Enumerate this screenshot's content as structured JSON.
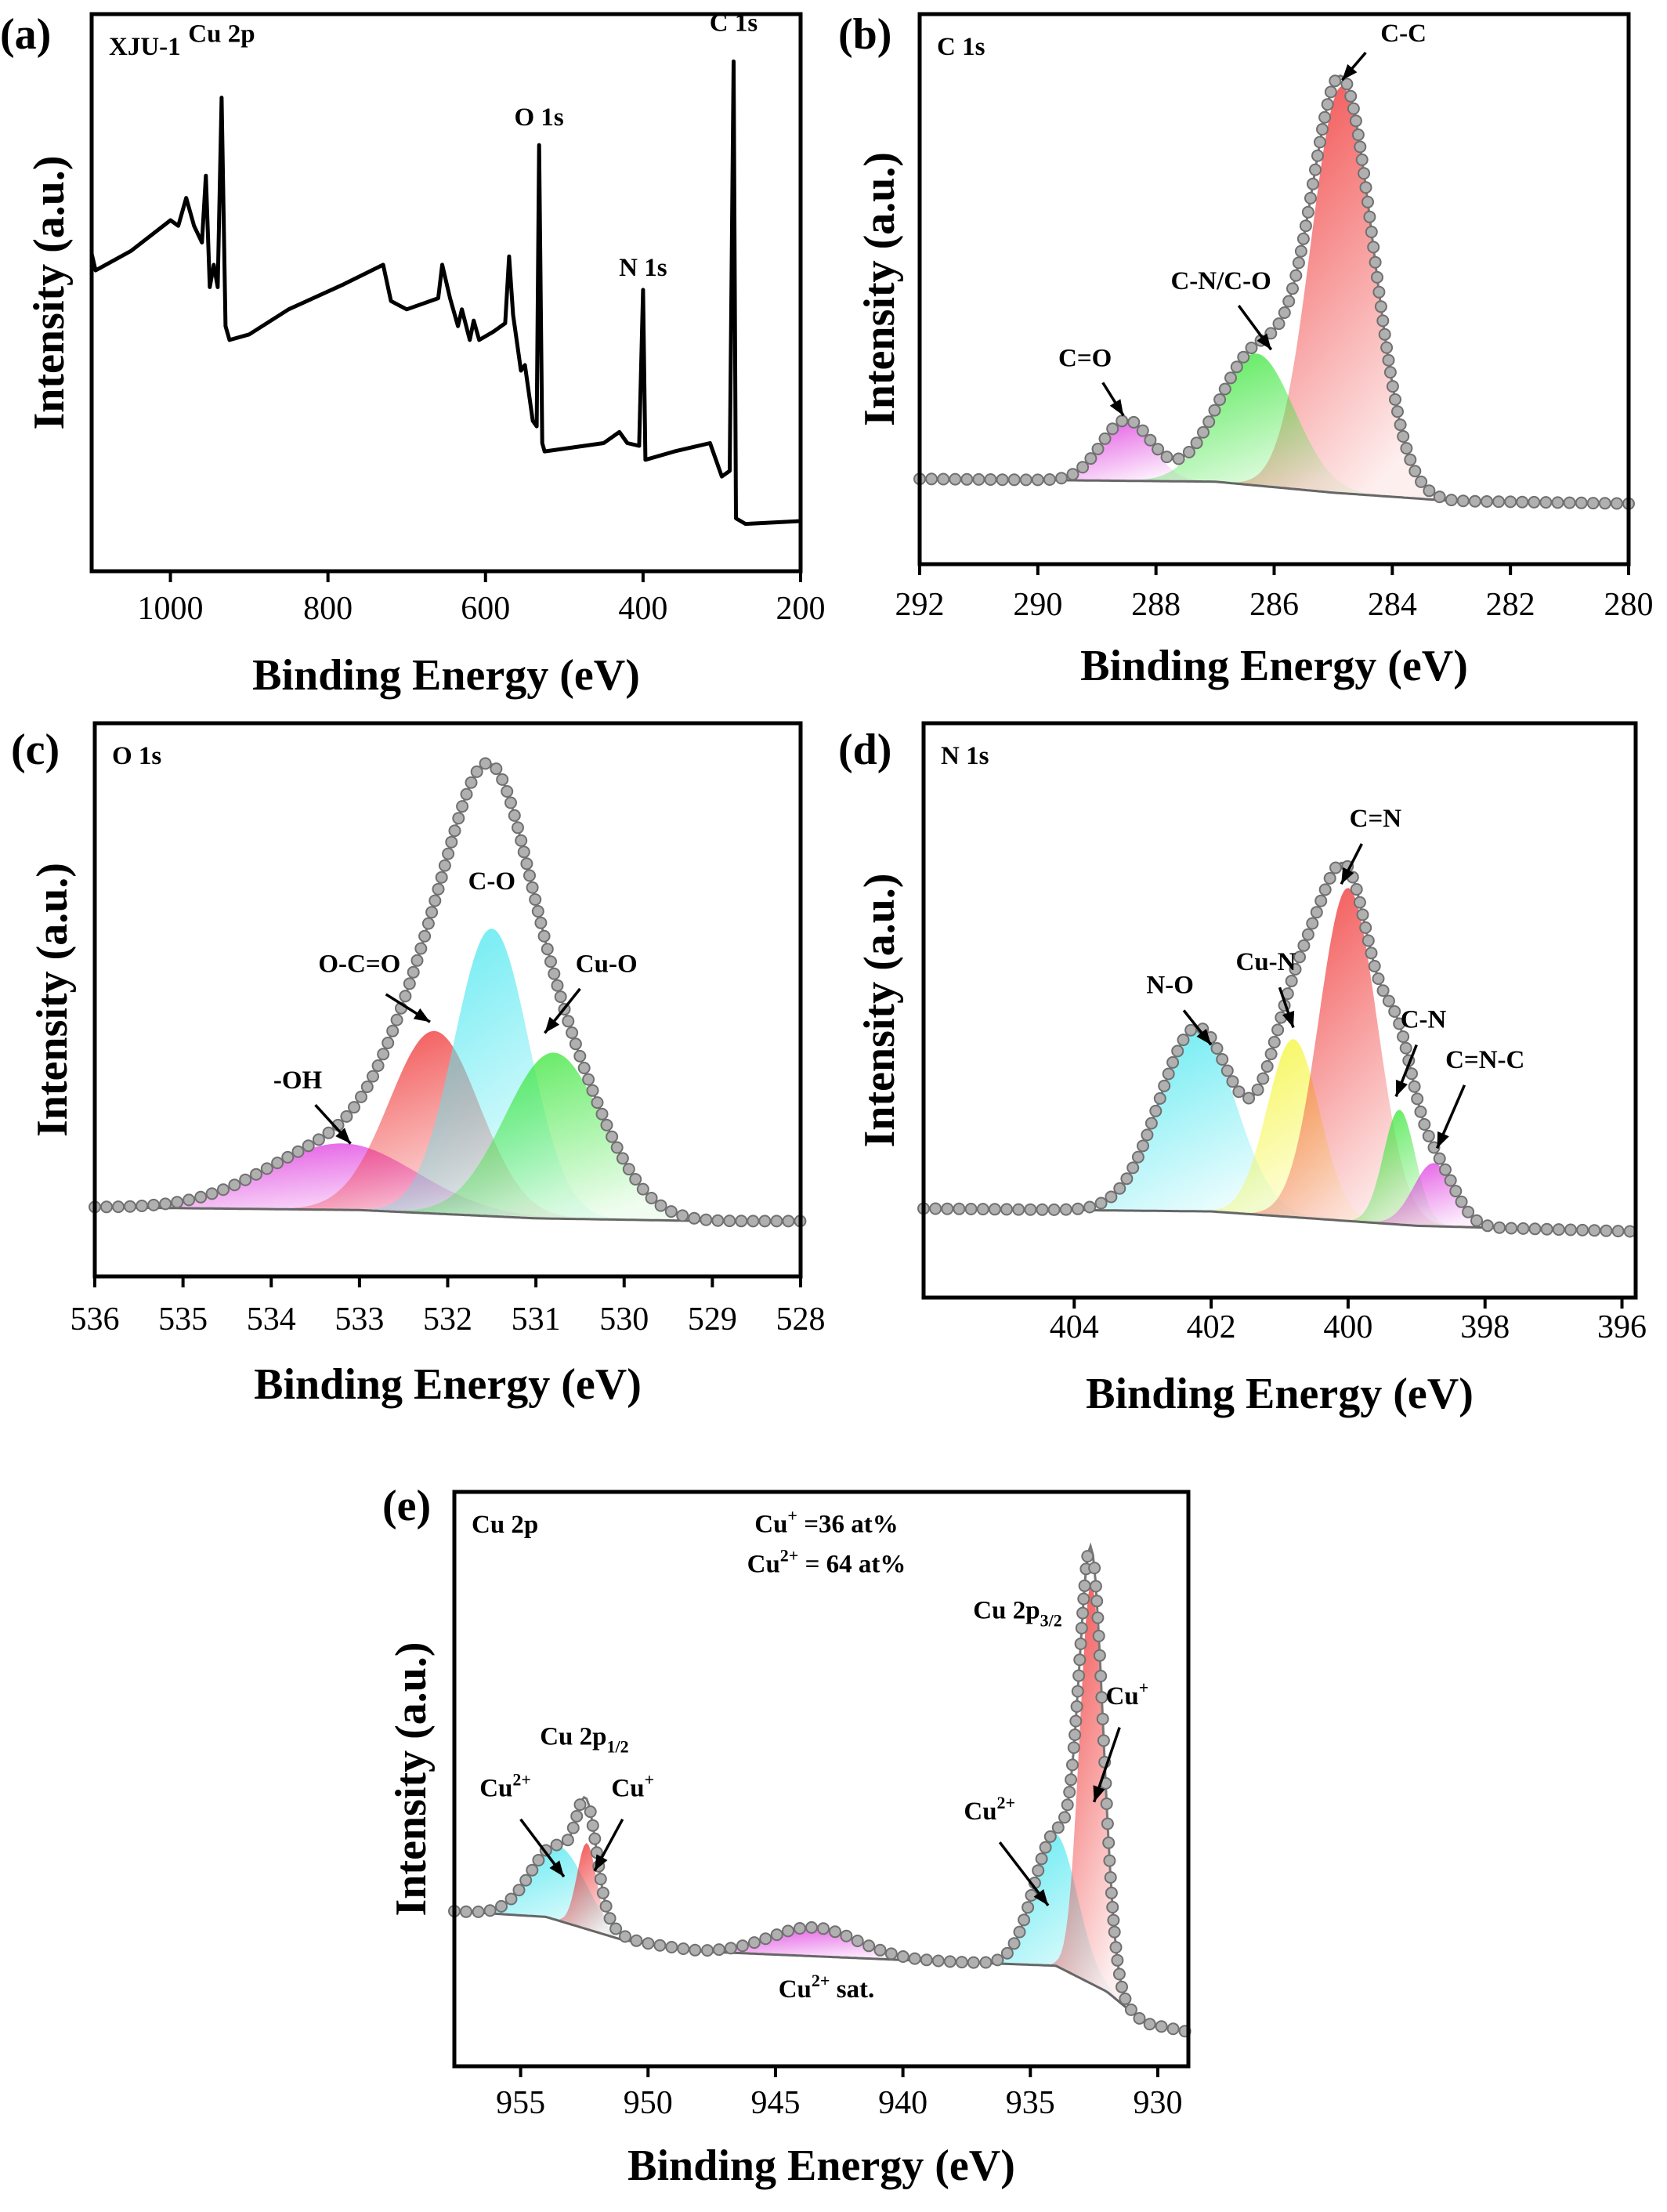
{
  "chart_data": [
    {
      "panel": "(a)",
      "type": "line",
      "corner_label": "XJU-1",
      "xlabel": "Binding Energy (eV)",
      "ylabel": "Intensity (a.u.)",
      "xlim": [
        1100,
        200
      ],
      "ylim": [
        0,
        100
      ],
      "xticks": [
        1000,
        800,
        600,
        400,
        200
      ],
      "grid": false,
      "line_color": "#000000",
      "series": [
        {
          "x": [
            1100,
            1095,
            1050,
            1000,
            990,
            980,
            970,
            960,
            955,
            950,
            945,
            940,
            935,
            930,
            925,
            900,
            850,
            780,
            730,
            720,
            700,
            660,
            655,
            645,
            635,
            630,
            620,
            615,
            608,
            590,
            575,
            570,
            565,
            555,
            550,
            540,
            535,
            532,
            528,
            525,
            450,
            430,
            420,
            405,
            400,
            397,
            360,
            315,
            300,
            290,
            285,
            282,
            270,
            200
          ],
          "y": [
            57,
            54,
            57.5,
            63,
            62,
            67,
            62,
            59,
            71,
            51,
            55,
            51,
            85,
            44,
            41.5,
            42.5,
            47,
            51.5,
            55,
            48.5,
            47,
            49,
            55,
            49,
            44,
            47,
            41.5,
            45,
            41.5,
            43,
            44.5,
            56.5,
            46,
            36,
            37,
            27,
            26,
            76.5,
            23,
            21.5,
            23,
            25,
            23,
            22.5,
            50.5,
            20,
            21.5,
            23,
            17,
            18,
            91.5,
            9.5,
            8.5,
            9
          ]
        }
      ],
      "annotations": [
        {
          "text": "Cu 2p"
        },
        {
          "text": "O 1s"
        },
        {
          "text": "N 1s"
        },
        {
          "text": "C 1s"
        }
      ]
    },
    {
      "panel": "(b)",
      "type": "area",
      "corner_label": "C 1s",
      "xlabel": "Binding Energy (eV)",
      "ylabel": "Intensity (a.u.)",
      "xlim": [
        292,
        280
      ],
      "ylim": [
        0,
        100
      ],
      "xticks": [
        292,
        290,
        288,
        286,
        284,
        282,
        280
      ],
      "grid": false,
      "background": [
        [
          292,
          15.5
        ],
        [
          287,
          15
        ],
        [
          285,
          13
        ],
        [
          283,
          11.5
        ],
        [
          280,
          11
        ]
      ],
      "peaks": [
        {
          "name": "C-C",
          "center": 284.85,
          "height": 74,
          "fwhm": 1.25,
          "color": "#f03434"
        },
        {
          "name": "C-N/C-O",
          "center": 286.3,
          "height": 24,
          "fwhm": 1.5,
          "color": "#3ce63c"
        },
        {
          "name": "C=O",
          "center": 288.5,
          "height": 11,
          "fwhm": 1.0,
          "color": "#e040e0"
        }
      ],
      "annotations": [
        {
          "text": "C-C"
        },
        {
          "text": "C-N/C-O"
        },
        {
          "text": "C=O"
        }
      ]
    },
    {
      "panel": "(c)",
      "type": "area",
      "corner_label": "O 1s",
      "xlabel": "Binding Energy (eV)",
      "ylabel": "Intensity (a.u.)",
      "xlim": [
        536,
        528
      ],
      "ylim": [
        0,
        100
      ],
      "xticks": [
        536,
        535,
        534,
        533,
        532,
        531,
        530,
        529,
        528
      ],
      "grid": false,
      "background": [
        [
          536,
          12.5
        ],
        [
          533,
          12
        ],
        [
          531,
          10.5
        ],
        [
          529,
          10
        ],
        [
          528,
          10
        ]
      ],
      "peaks": [
        {
          "name": "-OH",
          "center": 533.2,
          "height": 12,
          "fwhm": 2.0,
          "color": "#e040e0"
        },
        {
          "name": "O-C=O",
          "center": 532.15,
          "height": 33,
          "fwhm": 1.2,
          "color": "#f03434"
        },
        {
          "name": "C-O",
          "center": 531.5,
          "height": 52,
          "fwhm": 1.0,
          "color": "#50e8f0"
        },
        {
          "name": "Cu-O",
          "center": 530.8,
          "height": 30,
          "fwhm": 1.3,
          "color": "#3ce63c"
        }
      ],
      "annotations": [
        {
          "text": "C-O"
        },
        {
          "text": "O-C=O"
        },
        {
          "text": "Cu-O"
        },
        {
          "text": "-OH"
        }
      ]
    },
    {
      "panel": "(d)",
      "type": "area",
      "corner_label": "N 1s",
      "xlabel": "Binding Energy (eV)",
      "ylabel": "Intensity (a.u.)",
      "xlim": [
        406.2,
        395.8
      ],
      "ylim": [
        0,
        100
      ],
      "xticks": [
        404,
        402,
        400,
        398,
        396
      ],
      "grid": false,
      "background": [
        [
          406.2,
          15.5
        ],
        [
          402,
          15
        ],
        [
          399,
          12.5
        ],
        [
          395.8,
          11.5
        ]
      ],
      "peaks": [
        {
          "name": "N-O",
          "center": 402.2,
          "height": 32,
          "fwhm": 1.3,
          "color": "#50e8f0"
        },
        {
          "name": "Cu-N",
          "center": 400.8,
          "height": 31,
          "fwhm": 0.9,
          "color": "#f5f53a"
        },
        {
          "name": "C=N",
          "center": 400.0,
          "height": 58,
          "fwhm": 1.0,
          "color": "#f03434"
        },
        {
          "name": "C-N",
          "center": 399.25,
          "height": 20,
          "fwhm": 0.55,
          "color": "#3ce63c"
        },
        {
          "name": "C=N-C",
          "center": 398.75,
          "height": 11,
          "fwhm": 0.7,
          "color": "#e040e0"
        }
      ],
      "annotations": [
        {
          "text": "N-O"
        },
        {
          "text": "Cu-N"
        },
        {
          "text": "C=N"
        },
        {
          "text": "C-N"
        },
        {
          "text": "C=N-C"
        }
      ]
    },
    {
      "panel": "(e)",
      "type": "area",
      "corner_label": "Cu 2p",
      "xlabel": "Binding Energy (eV)",
      "ylabel": "Intensity (a.u.)",
      "xlim": [
        957.6,
        928.8
      ],
      "ylim": [
        0,
        100
      ],
      "xticks": [
        955,
        950,
        945,
        940,
        935,
        930
      ],
      "grid": false,
      "background": [
        [
          957.6,
          27
        ],
        [
          954,
          26
        ],
        [
          951,
          22
        ],
        [
          948,
          20
        ],
        [
          940,
          18.5
        ],
        [
          934,
          17.5
        ],
        [
          932,
          13
        ],
        [
          930.5,
          7.5
        ],
        [
          928.8,
          6
        ]
      ],
      "peaks": [
        {
          "name": "Cu2+ (2p1/2)",
          "center": 953.5,
          "height": 13,
          "fwhm": 2.5,
          "color": "#50e8f0"
        },
        {
          "name": "Cu+ (2p1/2)",
          "center": 952.4,
          "height": 15,
          "fwhm": 0.9,
          "color": "#f03434"
        },
        {
          "name": "Cu2+ sat.",
          "center": 943.5,
          "height": 5,
          "fwhm": 4.0,
          "color": "#e040e0"
        },
        {
          "name": "Cu2+ (2p3/2)",
          "center": 934.0,
          "height": 23,
          "fwhm": 2.0,
          "color": "#50e8f0"
        },
        {
          "name": "Cu+ (2p3/2)",
          "center": 932.6,
          "height": 70,
          "fwhm": 1.1,
          "color": "#f03434"
        }
      ],
      "annotations": [
        {
          "text": "Cu",
          "sup": "+",
          "after": " =36 at%"
        },
        {
          "text": "Cu",
          "sup": "2+",
          "after": " = 64 at%"
        },
        {
          "text": "Cu 2p",
          "sub": "3/2"
        },
        {
          "text": "Cu",
          "sup": "+"
        },
        {
          "text": "Cu",
          "sup": "2+"
        },
        {
          "text": "Cu 2p",
          "sub": "1/2"
        },
        {
          "text": "Cu",
          "sup": "2+"
        },
        {
          "text": "Cu",
          "sup": "+"
        },
        {
          "text": "Cu",
          "sup": "2+",
          "after": " sat."
        }
      ]
    }
  ]
}
